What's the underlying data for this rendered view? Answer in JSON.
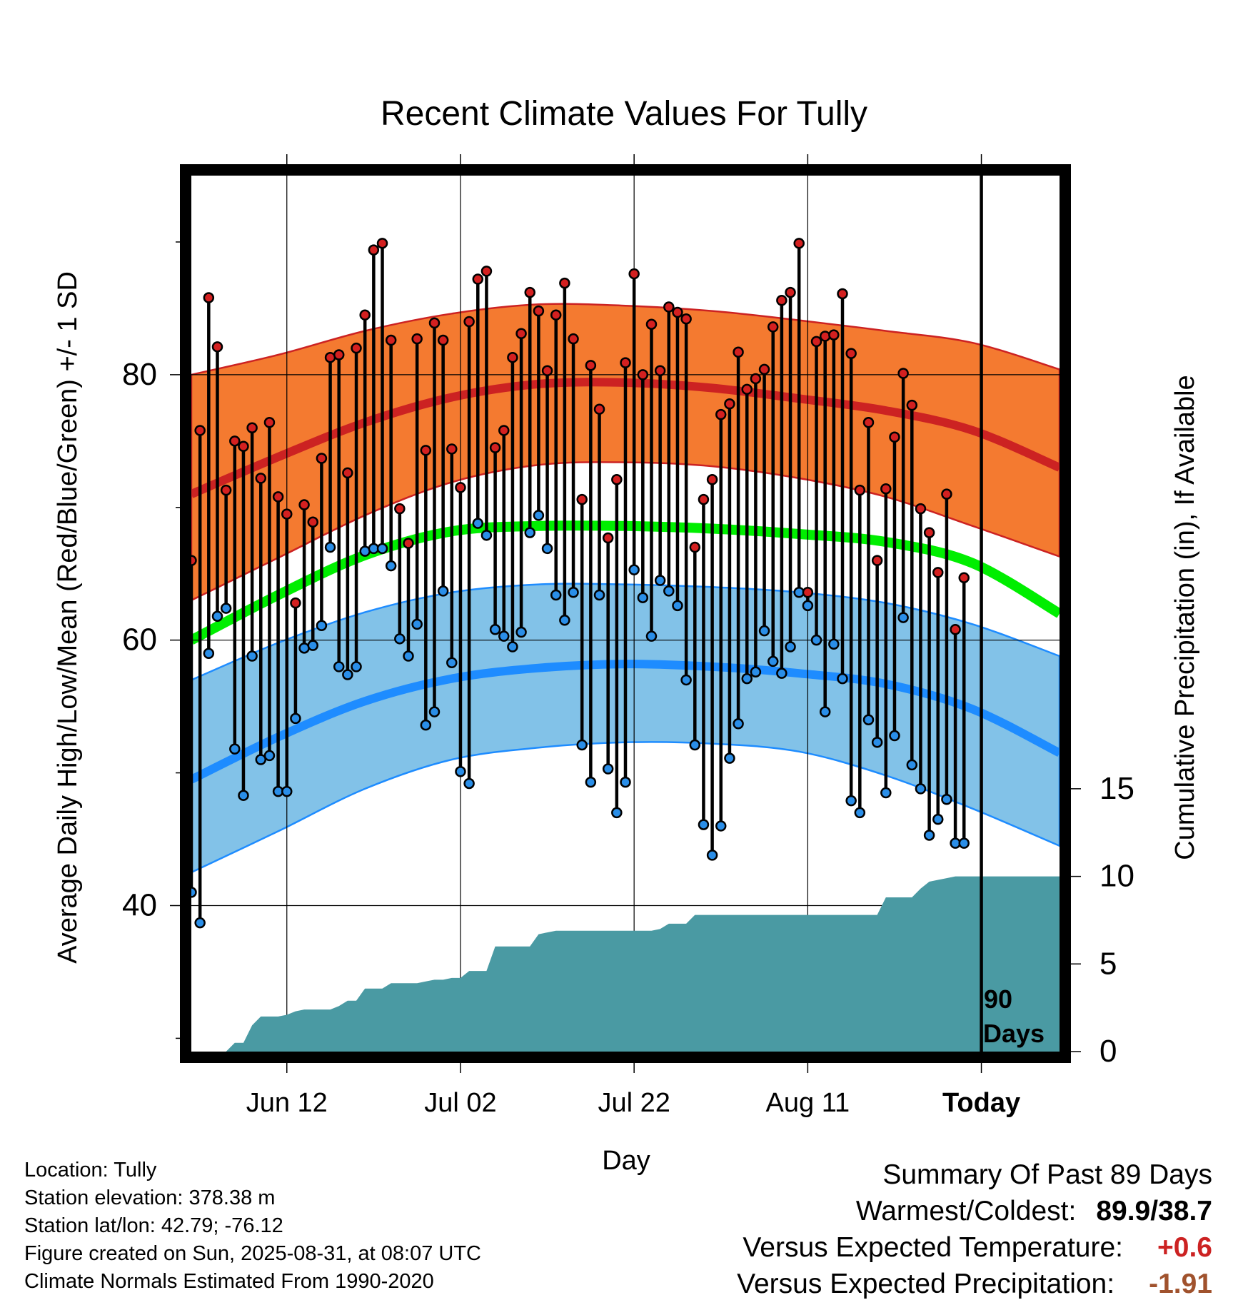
{
  "title": "Recent Climate Values For Tully",
  "y_label_left": "Average Daily High/Low/Mean (Red/Blue/Green) +/- 1 SD",
  "y_label_right": "Cumulative Precipitation (in), If Available",
  "x_label": "Day",
  "today_label": "Today",
  "days_label_line1": "90",
  "days_label_line2": "Days",
  "info": {
    "location": "Location: Tully",
    "elevation": "Station elevation: 378.38 m",
    "latlon": "Station lat/lon: 42.79; -76.12",
    "created": "Figure created on Sun, 2025-08-31, at 08:07 UTC",
    "normals": "Climate Normals Estimated From 1990-2020"
  },
  "summary": {
    "heading": "Summary Of Past 89 Days",
    "warm_cold_label": "Warmest/Coldest:",
    "warm_cold_value": "89.9/38.7",
    "temp_label": "Versus Expected Temperature:",
    "temp_value": "+0.6",
    "precip_label": "Versus Expected Precipitation:",
    "precip_value": "-1.91"
  },
  "colors": {
    "high_band": "#f47a30",
    "high_line": "#cc2222",
    "mean_line": "#00ee00",
    "low_band": "#82c2e8",
    "low_line": "#1e8cff",
    "precip_fill": "#4a9aa3",
    "high_dot": "#d42020",
    "low_dot": "#2a8ee8"
  },
  "chart_data": {
    "type": "line",
    "x_ticks": [
      {
        "day": 11,
        "label": "Jun 12"
      },
      {
        "day": 31,
        "label": "Jul 02"
      },
      {
        "day": 51,
        "label": "Jul 22"
      },
      {
        "day": 71,
        "label": "Aug 11"
      },
      {
        "day": 91,
        "label": "Today"
      }
    ],
    "xlim": [
      0,
      100
    ],
    "ylim_temp": [
      29,
      95
    ],
    "y_ticks_temp": [
      40,
      60,
      80
    ],
    "ylim_precip": [
      0,
      50
    ],
    "y_ticks_precip": [
      0,
      5,
      10,
      15
    ],
    "today_day": 91,
    "normals": {
      "days": [
        0,
        10,
        20,
        30,
        40,
        50,
        60,
        70,
        80,
        90,
        100
      ],
      "high_mean": [
        71,
        73.8,
        76.4,
        78.3,
        79.3,
        79.4,
        79,
        78.2,
        77.3,
        75.8,
        73
      ],
      "high_upper": [
        80,
        81.5,
        83.3,
        84.6,
        85.3,
        85.2,
        84.8,
        84.1,
        83.3,
        82.4,
        80.4
      ],
      "high_lower": [
        63,
        66.2,
        69.4,
        71.9,
        73.2,
        73.4,
        73.1,
        72.2,
        70.8,
        68.6,
        66.3
      ],
      "mean": [
        60,
        63.4,
        66.4,
        68.2,
        68.6,
        68.6,
        68.4,
        68,
        67.4,
        65.8,
        62
      ],
      "low_mean": [
        49.5,
        52.7,
        55.4,
        57.1,
        57.9,
        58.2,
        58,
        57.5,
        56.7,
        54.8,
        51.5
      ],
      "low_upper": [
        57,
        59.8,
        62.1,
        63.6,
        64.2,
        64.2,
        64,
        63.6,
        62.8,
        61.2,
        58.8
      ],
      "low_lower": [
        42.5,
        45.6,
        48.8,
        51,
        51.9,
        52.3,
        52.2,
        51.6,
        49.8,
        47.3,
        44.5
      ]
    },
    "daily": {
      "days": [
        0,
        1,
        2,
        3,
        4,
        5,
        6,
        7,
        8,
        9,
        10,
        11,
        12,
        13,
        14,
        15,
        16,
        17,
        18,
        19,
        20,
        21,
        22,
        23,
        24,
        25,
        26,
        27,
        28,
        29,
        30,
        31,
        32,
        33,
        34,
        35,
        36,
        37,
        38,
        39,
        40,
        41,
        42,
        43,
        44,
        45,
        46,
        47,
        48,
        49,
        50,
        51,
        52,
        53,
        54,
        55,
        56,
        57,
        58,
        59,
        60,
        61,
        62,
        63,
        64,
        65,
        66,
        67,
        68,
        69,
        70,
        71,
        72,
        73,
        74,
        75,
        76,
        77,
        78,
        79,
        80,
        81,
        82,
        83,
        84,
        85,
        86,
        87,
        88,
        89
      ],
      "high": [
        66,
        75.8,
        85.8,
        82.1,
        71.3,
        75,
        74.6,
        76,
        72.2,
        76.4,
        70.8,
        69.5,
        62.8,
        70.2,
        68.9,
        73.7,
        81.3,
        81.5,
        72.6,
        82,
        84.5,
        89.4,
        89.9,
        82.6,
        69.9,
        67.3,
        82.7,
        74.3,
        83.9,
        82.6,
        74.4,
        71.5,
        84,
        87.2,
        87.8,
        74.5,
        75.8,
        81.3,
        83.1,
        86.2,
        84.8,
        80.3,
        84.5,
        86.9,
        82.7,
        70.6,
        80.7,
        77.4,
        67.7,
        72.1,
        80.9,
        87.6,
        80,
        83.8,
        80.3,
        85.1,
        84.7,
        84.2,
        67,
        70.6,
        72.1,
        77,
        77.8,
        81.7,
        78.9,
        79.7,
        80.4,
        83.6,
        85.6,
        86.2,
        89.9,
        63.6,
        82.5,
        82.9,
        83,
        86.1,
        81.6,
        71.3,
        76.4,
        66,
        71.4,
        75.3,
        80.1,
        77.7,
        69.9,
        68.1,
        65.1,
        71,
        60.8,
        64.7
      ],
      "low": [
        41,
        38.7,
        59,
        61.8,
        62.4,
        51.8,
        48.3,
        58.8,
        51,
        51.3,
        48.6,
        48.6,
        54.1,
        59.4,
        59.6,
        61.1,
        67,
        58,
        57.4,
        58,
        66.7,
        66.9,
        66.9,
        65.6,
        60.1,
        58.8,
        61.2,
        53.6,
        54.6,
        63.7,
        58.3,
        50.1,
        49.2,
        68.8,
        67.9,
        60.8,
        60.3,
        59.5,
        60.6,
        68.1,
        69.4,
        66.9,
        63.4,
        61.5,
        63.6,
        52.1,
        49.3,
        63.4,
        50.3,
        47,
        49.3,
        65.3,
        63.2,
        60.3,
        64.5,
        63.7,
        62.6,
        57,
        52.1,
        46.1,
        43.8,
        46,
        51.1,
        53.7,
        57.1,
        57.6,
        60.7,
        58.4,
        57.5,
        59.5,
        63.6,
        62.6,
        60,
        54.6,
        59.7,
        57.1,
        47.9,
        47,
        54,
        52.3,
        48.5,
        52.8,
        61.7,
        50.6,
        48.8,
        45.3,
        46.5,
        48,
        44.7,
        44.7
      ]
    },
    "precip_cumulative": {
      "days": [
        0,
        4,
        5,
        6,
        7,
        8,
        9,
        10,
        11,
        12,
        13,
        14,
        15,
        16,
        17,
        18,
        19,
        20,
        21,
        22,
        23,
        24,
        25,
        26,
        27,
        28,
        29,
        30,
        31,
        32,
        33,
        34,
        35,
        36,
        37,
        38,
        39,
        40,
        41,
        42,
        43,
        44,
        45,
        46,
        47,
        48,
        49,
        50,
        51,
        52,
        53,
        54,
        55,
        56,
        57,
        58,
        59,
        60,
        61,
        62,
        63,
        64,
        65,
        66,
        67,
        68,
        69,
        70,
        71,
        72,
        73,
        74,
        75,
        76,
        77,
        78,
        79,
        80,
        81,
        82,
        83,
        84,
        85,
        86,
        87,
        88,
        89,
        90,
        91,
        100
      ],
      "values": [
        0,
        0,
        0.5,
        0.5,
        1.5,
        2,
        2,
        2,
        2.1,
        2.3,
        2.4,
        2.4,
        2.4,
        2.4,
        2.6,
        2.9,
        2.9,
        3.6,
        3.6,
        3.6,
        3.9,
        3.9,
        3.9,
        3.9,
        4,
        4.1,
        4.1,
        4.2,
        4.2,
        4.6,
        4.6,
        4.6,
        6,
        6,
        6,
        6,
        6,
        6.7,
        6.8,
        6.9,
        6.9,
        6.9,
        6.9,
        6.9,
        6.9,
        6.9,
        6.9,
        6.9,
        6.9,
        6.9,
        6.9,
        7,
        7.3,
        7.3,
        7.3,
        7.8,
        7.8,
        7.8,
        7.8,
        7.8,
        7.8,
        7.8,
        7.8,
        7.8,
        7.8,
        7.8,
        7.8,
        7.8,
        7.8,
        7.8,
        7.8,
        7.8,
        7.8,
        7.8,
        7.8,
        7.8,
        7.8,
        8.8,
        8.8,
        8.8,
        8.8,
        9.3,
        9.7,
        9.8,
        9.9,
        10,
        10,
        10,
        10,
        10
      ]
    }
  }
}
